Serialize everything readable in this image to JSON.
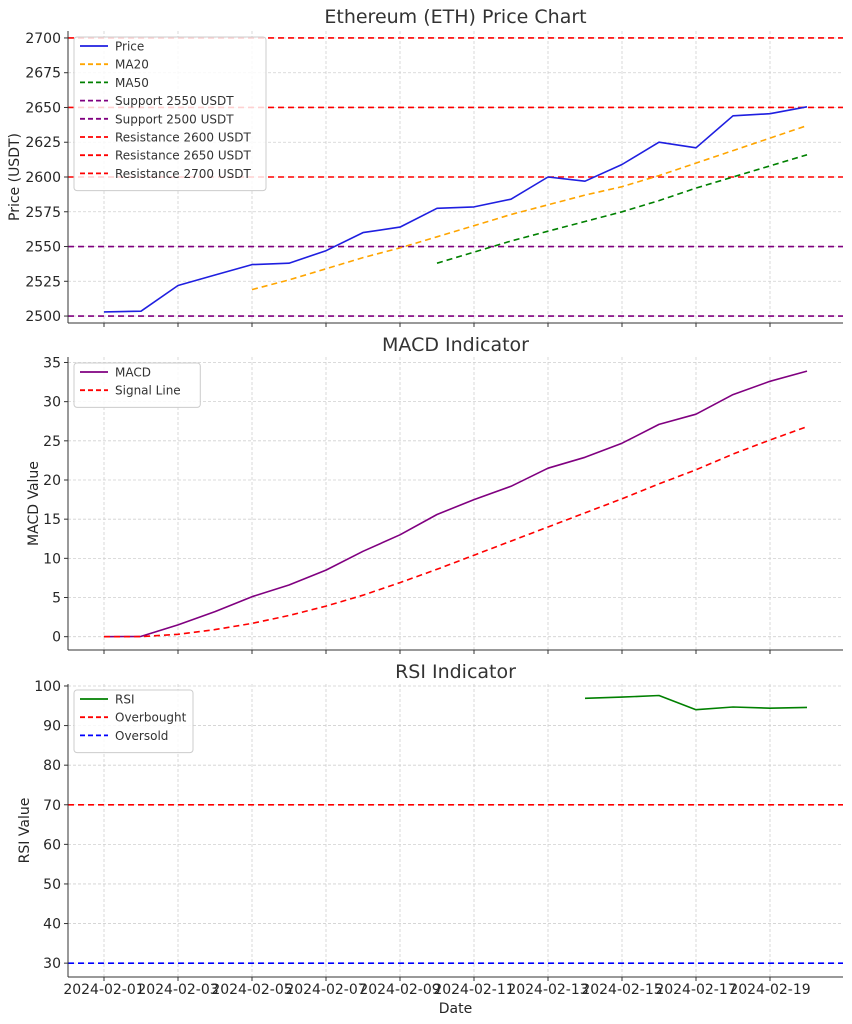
{
  "chart_data": [
    {
      "type": "line",
      "title": "Ethereum (ETH) Price Chart",
      "xlabel": "",
      "ylabel": "Price (USDT)",
      "ylim": [
        2495,
        2705
      ],
      "yticks": [
        2500,
        2525,
        2550,
        2575,
        2600,
        2625,
        2650,
        2675,
        2700
      ],
      "grid": true,
      "legend_position": "top-left",
      "x": [
        "2024-02-01",
        "2024-02-02",
        "2024-02-03",
        "2024-02-04",
        "2024-02-05",
        "2024-02-06",
        "2024-02-07",
        "2024-02-08",
        "2024-02-09",
        "2024-02-10",
        "2024-02-11",
        "2024-02-12",
        "2024-02-13",
        "2024-02-14",
        "2024-02-15",
        "2024-02-16",
        "2024-02-17",
        "2024-02-18",
        "2024-02-19",
        "2024-02-20"
      ],
      "series": [
        {
          "name": "Price",
          "color": "#1f1fe0",
          "style": "solid",
          "values": [
            2503,
            2503.5,
            2522,
            2529.5,
            2537,
            2538,
            2547,
            2560,
            2564,
            2577.5,
            2578.5,
            2584,
            2600,
            2597,
            2609,
            2625,
            2621,
            2644,
            2645.5,
            2650.5
          ]
        },
        {
          "name": "MA20",
          "color": "#ffa500",
          "style": "dashed",
          "values": [
            null,
            null,
            null,
            null,
            2519,
            2526,
            2534,
            2542,
            2549,
            2557,
            2565,
            2573,
            2580,
            2587,
            2593,
            2601,
            2610,
            2619,
            2628,
            2637
          ]
        },
        {
          "name": "MA50",
          "color": "#008000",
          "style": "dashed",
          "values": [
            null,
            null,
            null,
            null,
            null,
            null,
            null,
            null,
            null,
            2538,
            2546,
            2554,
            2561,
            2568,
            2575,
            2583,
            2592,
            2600,
            2608,
            2616
          ]
        }
      ],
      "hlines": [
        {
          "name": "Support 2550 USDT",
          "value": 2550,
          "color": "#800080"
        },
        {
          "name": "Support 2500 USDT",
          "value": 2500,
          "color": "#800080"
        },
        {
          "name": "Resistance 2600 USDT",
          "value": 2600,
          "color": "#ff0000"
        },
        {
          "name": "Resistance 2650 USDT",
          "value": 2650,
          "color": "#ff0000"
        },
        {
          "name": "Resistance 2700 USDT",
          "value": 2700,
          "color": "#ff0000"
        }
      ]
    },
    {
      "type": "line",
      "title": "MACD Indicator",
      "xlabel": "",
      "ylabel": "MACD Value",
      "ylim": [
        -1.7,
        35.7
      ],
      "yticks": [
        0,
        5,
        10,
        15,
        20,
        25,
        30,
        35
      ],
      "grid": true,
      "legend_position": "top-left",
      "x": [
        "2024-02-01",
        "2024-02-02",
        "2024-02-03",
        "2024-02-04",
        "2024-02-05",
        "2024-02-06",
        "2024-02-07",
        "2024-02-08",
        "2024-02-09",
        "2024-02-10",
        "2024-02-11",
        "2024-02-12",
        "2024-02-13",
        "2024-02-14",
        "2024-02-15",
        "2024-02-16",
        "2024-02-17",
        "2024-02-18",
        "2024-02-19",
        "2024-02-20"
      ],
      "series": [
        {
          "name": "MACD",
          "color": "#800080",
          "style": "solid",
          "values": [
            0,
            0.04,
            1.5,
            3.2,
            5.1,
            6.6,
            8.5,
            10.9,
            13.0,
            15.6,
            17.5,
            19.2,
            21.5,
            22.9,
            24.7,
            27.1,
            28.4,
            30.9,
            32.6,
            33.9
          ]
        },
        {
          "name": "Signal Line",
          "color": "#ff0000",
          "style": "dashed",
          "values": [
            0,
            0.01,
            0.3,
            0.9,
            1.7,
            2.7,
            3.9,
            5.3,
            6.9,
            8.6,
            10.4,
            12.2,
            14.0,
            15.8,
            17.6,
            19.5,
            21.3,
            23.3,
            25.1,
            26.8
          ]
        }
      ],
      "hlines": []
    },
    {
      "type": "line",
      "title": "RSI Indicator",
      "xlabel": "Date",
      "ylabel": "RSI Value",
      "ylim": [
        26.5,
        100.5
      ],
      "yticks": [
        30,
        40,
        50,
        60,
        70,
        80,
        90,
        100
      ],
      "grid": true,
      "legend_position": "top-left",
      "x": [
        "2024-02-01",
        "2024-02-02",
        "2024-02-03",
        "2024-02-04",
        "2024-02-05",
        "2024-02-06",
        "2024-02-07",
        "2024-02-08",
        "2024-02-09",
        "2024-02-10",
        "2024-02-11",
        "2024-02-12",
        "2024-02-13",
        "2024-02-14",
        "2024-02-15",
        "2024-02-16",
        "2024-02-17",
        "2024-02-18",
        "2024-02-19",
        "2024-02-20"
      ],
      "xticks": [
        "2024-02-01",
        "2024-02-03",
        "2024-02-05",
        "2024-02-07",
        "2024-02-09",
        "2024-02-11",
        "2024-02-13",
        "2024-02-15",
        "2024-02-17",
        "2024-02-19"
      ],
      "series": [
        {
          "name": "RSI",
          "color": "#008000",
          "style": "solid",
          "values": [
            null,
            null,
            null,
            null,
            null,
            null,
            null,
            null,
            null,
            null,
            null,
            null,
            null,
            96.9,
            97.2,
            97.6,
            94.0,
            94.7,
            94.4,
            94.6
          ]
        }
      ],
      "hlines": [
        {
          "name": "Overbought",
          "value": 70,
          "color": "#ff0000"
        },
        {
          "name": "Oversold",
          "value": 30,
          "color": "#0000ff"
        }
      ]
    }
  ]
}
